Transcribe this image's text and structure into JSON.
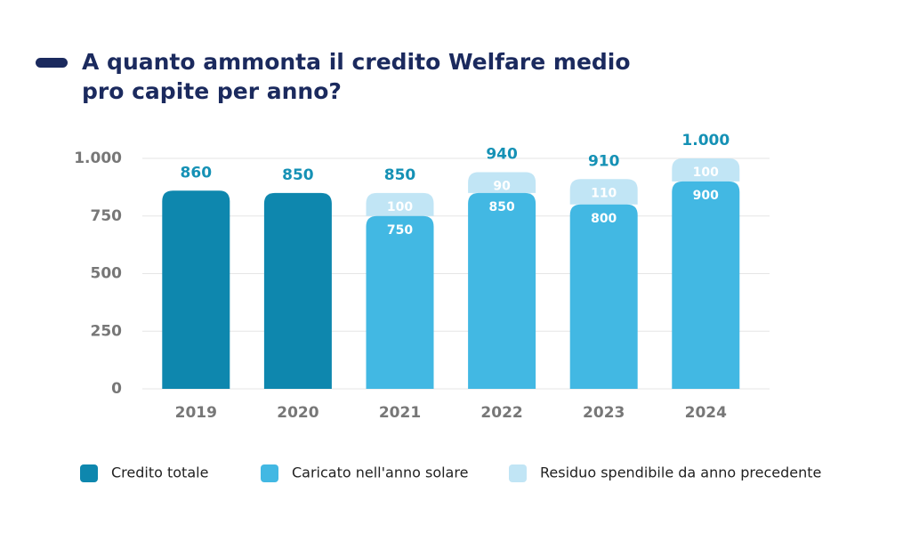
{
  "chart_data": {
    "type": "stacked_bar",
    "title": [
      "A quanto ammonta il credito Welfare medio",
      "pro capite per anno?"
    ],
    "categories": [
      "2019",
      "2020",
      "2021",
      "2022",
      "2023",
      "2024"
    ],
    "series": [
      {
        "name": "Credito totale",
        "color": "#0e87ae",
        "values": [
          860,
          850,
          null,
          null,
          null,
          null
        ]
      },
      {
        "name": "Caricato nell'anno solare",
        "color": "#42b8e3",
        "values": [
          null,
          null,
          750,
          850,
          800,
          900
        ]
      },
      {
        "name": "Residuo spendibile da anno precedente",
        "color": "#c1e5f5",
        "values": [
          null,
          null,
          100,
          90,
          110,
          100
        ]
      }
    ],
    "totals": {
      "values": [
        860,
        850,
        850,
        940,
        910,
        1000
      ],
      "value_labels": [
        "860",
        "850",
        "850",
        "940",
        "910",
        "1.000"
      ],
      "color": "#1591b5"
    },
    "ylim": [
      0,
      1000
    ],
    "yticks": [
      0,
      250,
      500,
      750,
      {
        "value": 1000,
        "label": "1.000"
      }
    ],
    "grid": true
  }
}
